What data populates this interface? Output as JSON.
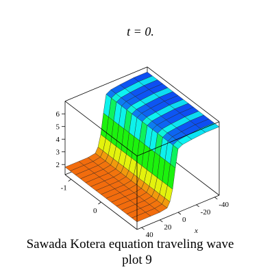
{
  "chart_data": {
    "type": "surface3d",
    "title": "t = 0.",
    "caption": [
      "Sawada Kotera equation  traveling wave",
      "plot 9"
    ],
    "xlabel": "x",
    "x": [
      -45,
      -30,
      -15,
      -5,
      0,
      3,
      6,
      9,
      12,
      20,
      30,
      45
    ],
    "z": [
      6.6,
      6.6,
      6.5,
      6.4,
      6.2,
      4.8,
      3.2,
      2.3,
      1.9,
      1.8,
      1.8,
      1.8
    ],
    "xlim": [
      -45,
      45
    ],
    "ylim": [
      -1.2,
      1.2
    ],
    "zlim": [
      1.2,
      7
    ],
    "xticks": [
      -40,
      -20,
      0,
      20,
      40
    ],
    "yticks": [
      -1,
      0
    ],
    "zticks": [
      2,
      3,
      4,
      5,
      6
    ]
  }
}
